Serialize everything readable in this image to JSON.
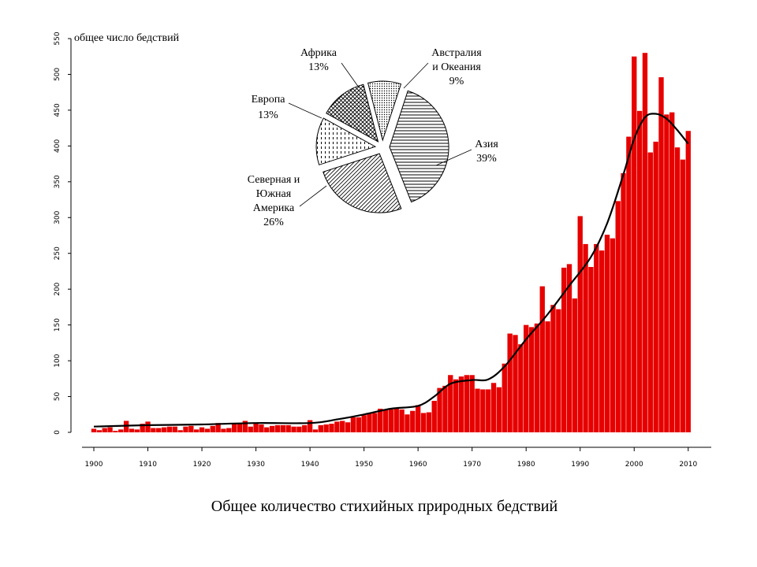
{
  "caption": "Общее количество стихийных природных бедствий",
  "chart_data": [
    {
      "type": "bar",
      "ylabel": "общее число бедствий",
      "xlim": [
        1898,
        2014
      ],
      "ylim": [
        0,
        550
      ],
      "yticks": [
        0,
        50,
        100,
        150,
        200,
        250,
        300,
        350,
        400,
        450,
        500,
        550
      ],
      "xticks": [
        1900,
        1910,
        1920,
        1930,
        1940,
        1950,
        1960,
        1970,
        1980,
        1990,
        2000,
        2010
      ],
      "bar_color": "#e60000",
      "x": [
        1900,
        1901,
        1902,
        1903,
        1904,
        1905,
        1906,
        1907,
        1908,
        1909,
        1910,
        1911,
        1912,
        1913,
        1914,
        1915,
        1916,
        1917,
        1918,
        1919,
        1920,
        1921,
        1922,
        1923,
        1924,
        1925,
        1926,
        1927,
        1928,
        1929,
        1930,
        1931,
        1932,
        1933,
        1934,
        1935,
        1936,
        1937,
        1938,
        1939,
        1940,
        1941,
        1942,
        1943,
        1944,
        1945,
        1946,
        1947,
        1948,
        1949,
        1950,
        1951,
        1952,
        1953,
        1954,
        1955,
        1956,
        1957,
        1958,
        1959,
        1960,
        1961,
        1962,
        1963,
        1964,
        1965,
        1966,
        1967,
        1968,
        1969,
        1970,
        1971,
        1972,
        1973,
        1974,
        1975,
        1976,
        1977,
        1978,
        1979,
        1980,
        1981,
        1982,
        1983,
        1984,
        1985,
        1986,
        1987,
        1988,
        1989,
        1990,
        1991,
        1992,
        1993,
        1994,
        1995,
        1996,
        1997,
        1998,
        1999,
        2000,
        2001,
        2002,
        2003,
        2004,
        2005,
        2006,
        2007,
        2008,
        2009,
        2010
      ],
      "values": [
        5,
        3,
        6,
        7,
        2,
        4,
        16,
        5,
        4,
        12,
        15,
        6,
        6,
        7,
        8,
        8,
        3,
        8,
        9,
        4,
        7,
        5,
        9,
        13,
        5,
        6,
        13,
        12,
        16,
        8,
        13,
        11,
        7,
        9,
        10,
        10,
        10,
        8,
        8,
        10,
        17,
        4,
        10,
        11,
        12,
        15,
        16,
        14,
        21,
        21,
        24,
        26,
        27,
        33,
        31,
        32,
        33,
        32,
        25,
        30,
        38,
        27,
        28,
        44,
        62,
        65,
        80,
        74,
        78,
        80,
        80,
        61,
        60,
        60,
        69,
        63,
        96,
        138,
        136,
        123,
        150,
        147,
        152,
        204,
        155,
        178,
        172,
        230,
        235,
        187,
        302,
        263,
        231,
        263,
        254,
        276,
        271,
        323,
        362,
        413,
        525,
        449,
        530,
        391,
        406,
        496,
        444,
        447,
        398,
        381,
        421
      ],
      "trend": {
        "x": [
          1900,
          1910,
          1920,
          1930,
          1940,
          1945,
          1950,
          1955,
          1960,
          1963,
          1966,
          1970,
          1973,
          1976,
          1980,
          1984,
          1988,
          1992,
          1995,
          1998,
          2000,
          2002,
          2004,
          2006,
          2008,
          2010
        ],
        "values": [
          8,
          10,
          11,
          13,
          13,
          18,
          25,
          33,
          37,
          50,
          68,
          73,
          74,
          92,
          130,
          165,
          205,
          245,
          292,
          360,
          410,
          440,
          445,
          438,
          422,
          403
        ]
      }
    },
    {
      "type": "pie",
      "labels": [
        "Азия",
        "Северная и Южная Америка",
        "Европа",
        "Африка",
        "Австралия и Океания"
      ],
      "values": [
        39,
        26,
        13,
        13,
        9
      ]
    }
  ],
  "pie_labels": [
    {
      "lines": [
        "Азия",
        "39%"
      ]
    },
    {
      "lines": [
        "Северная и",
        "Южная",
        "Америка",
        "26%"
      ]
    },
    {
      "lines": [
        "Европа",
        "13%"
      ]
    },
    {
      "lines": [
        "Африка",
        "13%"
      ]
    },
    {
      "lines": [
        "Австралия",
        "и Океания",
        "9%"
      ]
    }
  ]
}
